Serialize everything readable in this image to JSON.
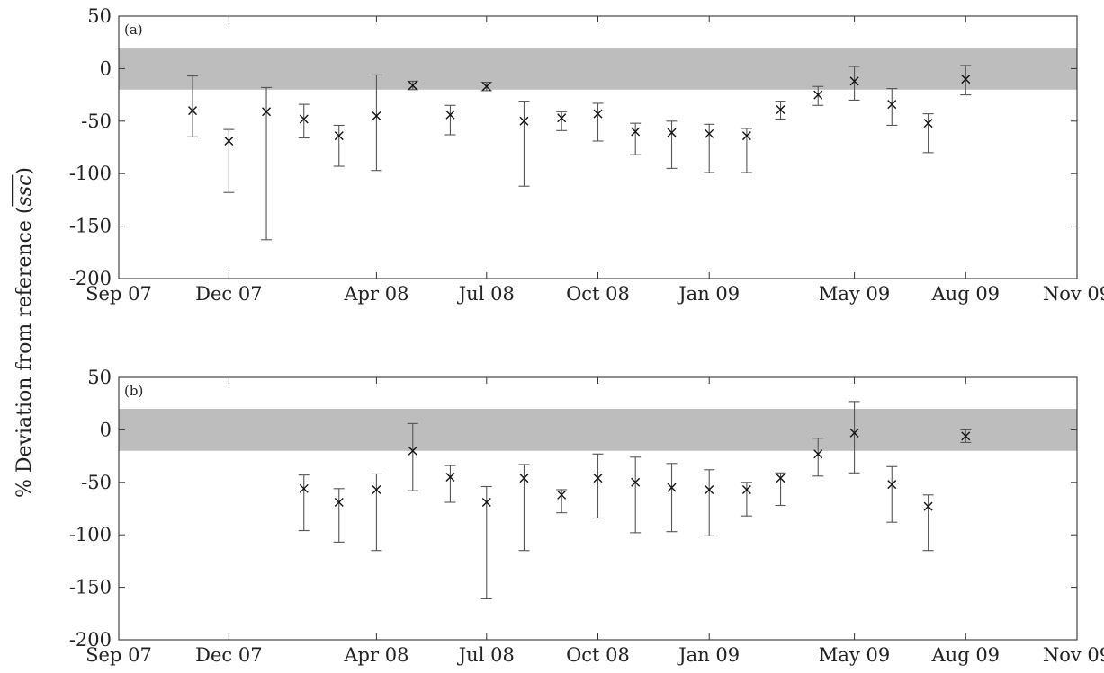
{
  "chart_data": [
    {
      "type": "scatter",
      "panel_label": "(a)",
      "ylabel": "% Deviation from reference (",
      "ylabel_symbol": "ssc",
      "ylabel_close": ")",
      "ylim": [
        -200,
        50
      ],
      "yticks": [
        50,
        0,
        -50,
        -100,
        -150,
        -200
      ],
      "xticks": [
        "Sep 07",
        "Dec 07",
        "Apr 08",
        "Jul 08",
        "Oct 08",
        "Jan 09",
        "May 09",
        "Aug 09",
        "Nov 09"
      ],
      "shaded_band": [
        -20,
        20
      ],
      "grid": false,
      "points": [
        {
          "x": "2007-11-01",
          "y": -40,
          "low": -65,
          "high": -7
        },
        {
          "x": "2007-12-01",
          "y": -69,
          "low": -118,
          "high": -58
        },
        {
          "x": "2008-01-01",
          "y": -41,
          "low": -163,
          "high": -18
        },
        {
          "x": "2008-02-01",
          "y": -48,
          "low": -66,
          "high": -34
        },
        {
          "x": "2008-03-01",
          "y": -64,
          "low": -93,
          "high": -54
        },
        {
          "x": "2008-04-01",
          "y": -45,
          "low": -97,
          "high": -6
        },
        {
          "x": "2008-05-01",
          "y": -16,
          "low": -20,
          "high": -12
        },
        {
          "x": "2008-06-01",
          "y": -44,
          "low": -63,
          "high": -35
        },
        {
          "x": "2008-07-01",
          "y": -17,
          "low": -21,
          "high": -13
        },
        {
          "x": "2008-08-01",
          "y": -50,
          "low": -112,
          "high": -31
        },
        {
          "x": "2008-09-01",
          "y": -47,
          "low": -59,
          "high": -41
        },
        {
          "x": "2008-10-01",
          "y": -43,
          "low": -69,
          "high": -33
        },
        {
          "x": "2008-11-01",
          "y": -60,
          "low": -82,
          "high": -52
        },
        {
          "x": "2008-12-01",
          "y": -61,
          "low": -95,
          "high": -50
        },
        {
          "x": "2009-01-01",
          "y": -62,
          "low": -99,
          "high": -53
        },
        {
          "x": "2009-02-01",
          "y": -64,
          "low": -99,
          "high": -57
        },
        {
          "x": "2009-03-01",
          "y": -39,
          "low": -48,
          "high": -31
        },
        {
          "x": "2009-04-01",
          "y": -25,
          "low": -35,
          "high": -17
        },
        {
          "x": "2009-05-01",
          "y": -12,
          "low": -30,
          "high": 2
        },
        {
          "x": "2009-06-01",
          "y": -34,
          "low": -54,
          "high": -19
        },
        {
          "x": "2009-07-01",
          "y": -52,
          "low": -80,
          "high": -43
        },
        {
          "x": "2009-08-01",
          "y": -10,
          "low": -25,
          "high": 3
        }
      ]
    },
    {
      "type": "scatter",
      "panel_label": "(b)",
      "ylim": [
        -200,
        50
      ],
      "yticks": [
        50,
        0,
        -50,
        -100,
        -150,
        -200
      ],
      "xticks": [
        "Sep 07",
        "Dec 07",
        "Apr 08",
        "Jul 08",
        "Oct 08",
        "Jan 09",
        "May 09",
        "Aug 09",
        "Nov 09"
      ],
      "shaded_band": [
        -20,
        20
      ],
      "grid": false,
      "points": [
        {
          "x": "2008-02-01",
          "y": -56,
          "low": -96,
          "high": -43
        },
        {
          "x": "2008-03-01",
          "y": -69,
          "low": -107,
          "high": -56
        },
        {
          "x": "2008-04-01",
          "y": -57,
          "low": -115,
          "high": -42
        },
        {
          "x": "2008-05-01",
          "y": -20,
          "low": -58,
          "high": 6
        },
        {
          "x": "2008-06-01",
          "y": -45,
          "low": -69,
          "high": -34
        },
        {
          "x": "2008-07-01",
          "y": -69,
          "low": -161,
          "high": -54
        },
        {
          "x": "2008-08-01",
          "y": -46,
          "low": -115,
          "high": -33
        },
        {
          "x": "2008-09-01",
          "y": -62,
          "low": -79,
          "high": -57
        },
        {
          "x": "2008-10-01",
          "y": -46,
          "low": -84,
          "high": -23
        },
        {
          "x": "2008-11-01",
          "y": -50,
          "low": -98,
          "high": -26
        },
        {
          "x": "2008-12-01",
          "y": -55,
          "low": -97,
          "high": -32
        },
        {
          "x": "2009-01-01",
          "y": -57,
          "low": -101,
          "high": -38
        },
        {
          "x": "2009-02-01",
          "y": -57,
          "low": -82,
          "high": -50
        },
        {
          "x": "2009-03-01",
          "y": -46,
          "low": -72,
          "high": -41
        },
        {
          "x": "2009-04-01",
          "y": -23,
          "low": -44,
          "high": -8
        },
        {
          "x": "2009-05-01",
          "y": -3,
          "low": -41,
          "high": 27
        },
        {
          "x": "2009-06-01",
          "y": -52,
          "low": -88,
          "high": -35
        },
        {
          "x": "2009-07-01",
          "y": -73,
          "low": -115,
          "high": -62
        },
        {
          "x": "2009-08-01",
          "y": -6,
          "low": -12,
          "high": 0
        }
      ]
    }
  ],
  "colors": {
    "band": "#bdbdbd",
    "axis": "#333333",
    "marker": "#111111",
    "errorbar": "#555555"
  }
}
